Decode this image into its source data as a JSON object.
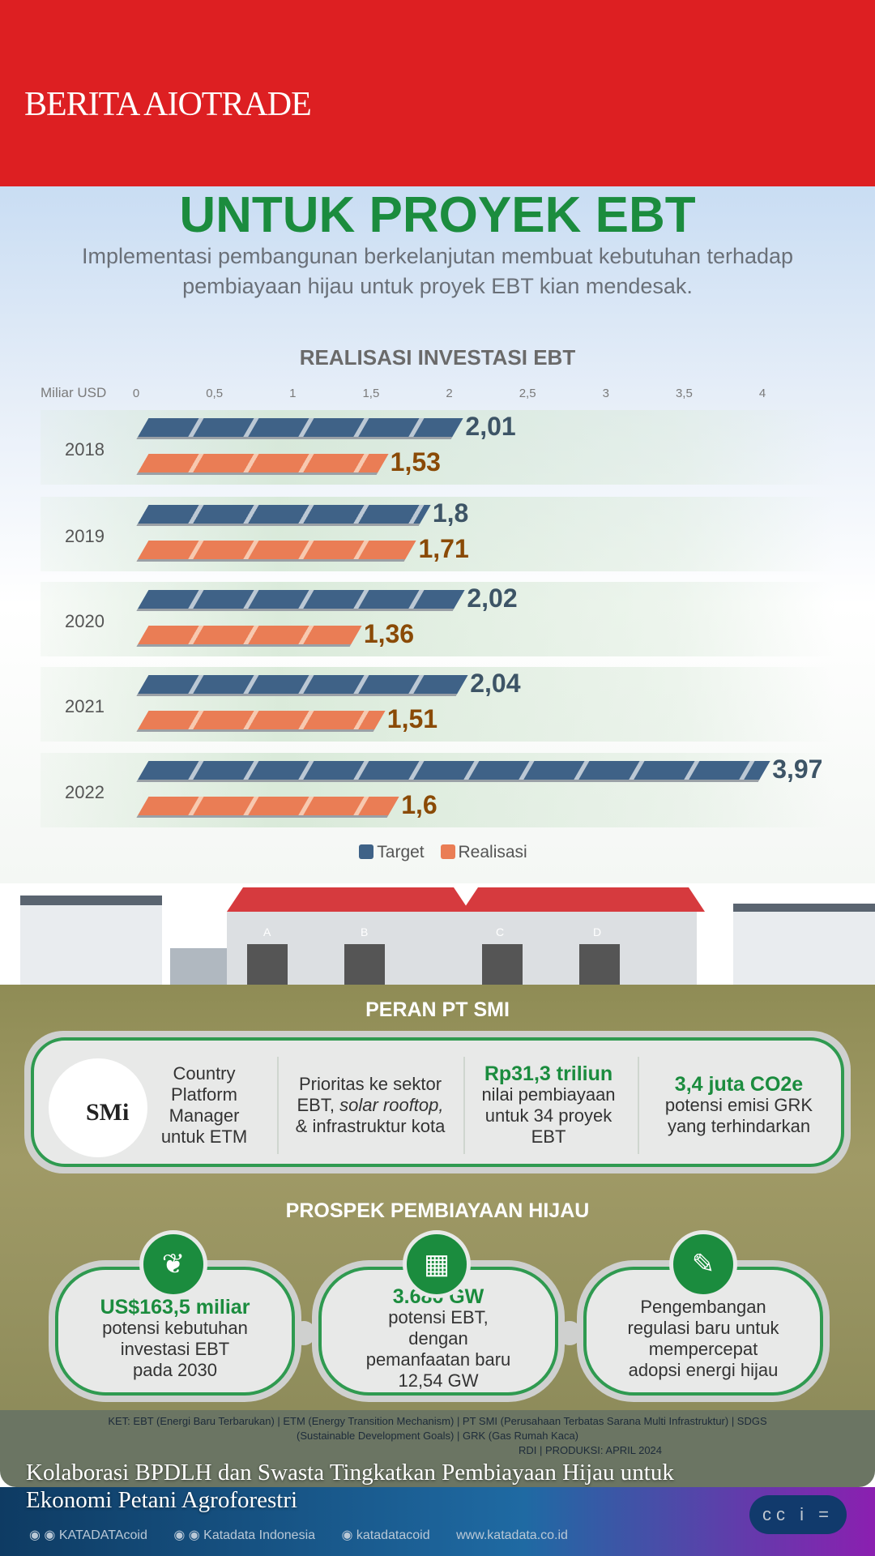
{
  "header": {
    "brand": "BERITA AIOTRADE"
  },
  "title": "UNTUK PROYEK EBT",
  "subtitle": "Implementasi pembangunan berkelanjutan membuat kebutuhan terhadap pembiayaan hijau untuk proyek EBT kian mendesak.",
  "chart_data": {
    "type": "bar",
    "orientation": "horizontal",
    "title": "REALISASI INVESTASI EBT",
    "unit_label": "Miliar USD",
    "xlim": [
      0,
      4
    ],
    "ticks": [
      "0",
      "0,5",
      "1",
      "1,5",
      "2",
      "2,5",
      "3",
      "3,5",
      "4"
    ],
    "categories": [
      "2018",
      "2019",
      "2020",
      "2021",
      "2022"
    ],
    "series": [
      {
        "name": "Target",
        "color": "#3f6287",
        "values": [
          2.01,
          1.8,
          2.02,
          2.04,
          3.97
        ],
        "labels": [
          "2,01",
          "1,8",
          "2,02",
          "2,04",
          "3,97"
        ]
      },
      {
        "name": "Realisasi",
        "color": "#ea7d55",
        "values": [
          1.53,
          1.71,
          1.36,
          1.51,
          1.6
        ],
        "labels": [
          "1,53",
          "1,71",
          "1,36",
          "1,51",
          "1,6"
        ]
      }
    ],
    "legend": "bottom-center"
  },
  "buildings": {
    "labels": [
      "A",
      "B",
      "C",
      "D"
    ]
  },
  "peran": {
    "title": "PERAN PT SMI",
    "logo_text": "SMi",
    "items": [
      {
        "highlight": "",
        "text": "Country Platform Manager untuk ETM"
      },
      {
        "highlight": "",
        "text_a": "Prioritas ke sektor EBT,",
        "text_italic": "solar rooftop,",
        "text_b": "& infrastruktur kota"
      },
      {
        "highlight": "Rp31,3 triliun",
        "text": "nilai pembiayaan untuk 34 proyek EBT"
      },
      {
        "highlight": "3,4 juta CO2e",
        "text": "potensi emisi GRK yang terhindarkan"
      }
    ]
  },
  "prospek": {
    "title": "PROSPEK PEMBIAYAAN HIJAU",
    "items": [
      {
        "icon": "money-plant-icon",
        "highlight": "US$163,5 miliar",
        "text": "potensi kebutuhan investasi EBT pada 2030"
      },
      {
        "icon": "solar-panel-icon",
        "highlight": "3.686 GW",
        "text": "potensi EBT, dengan pemanfaatan baru 12,54 GW"
      },
      {
        "icon": "document-edit-icon",
        "highlight": "",
        "text": "Pengembangan regulasi baru untuk mempercepat adopsi energi hijau"
      }
    ]
  },
  "footnote": {
    "ket": "KET: EBT (Energi Baru Terbarukan) | ETM (Energy Transition Mechanism) | PT SMI (Perusahaan Terbatas Sarana Multi Infrastruktur) | SDGS (Sustainable Development Goals) | GRK (Gas Rumah Kaca)",
    "source_visible": "RDI | PRODUKSI: APRIL 2024"
  },
  "social": {
    "twitter_linkedin": "KATADATAcoid",
    "facebook_youtube": "Katadata Indonesia",
    "instagram": "katadatacoid",
    "website": "www.katadata.co.id",
    "license": "cc i ="
  },
  "news_title": "Kolaborasi BPDLH dan Swasta Tingkatkan Pembiayaan Hijau untuk Ekonomi Petani Agroforestri"
}
